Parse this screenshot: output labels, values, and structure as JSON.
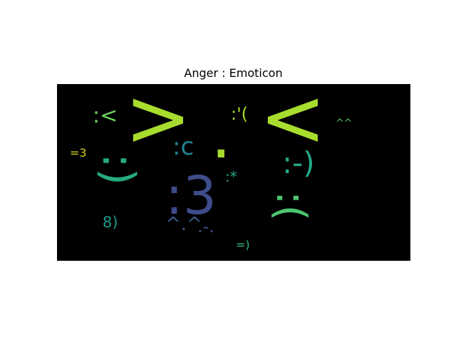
{
  "title": "Anger : Emoticon",
  "cloud_background": "#000000",
  "words": [
    {
      "id": "gt",
      "text": ">",
      "color": "#a8dc2e"
    },
    {
      "id": "lt",
      "text": "<",
      "color": "#a8dc2e"
    },
    {
      "id": "colon-lt",
      "text": ":<",
      "color": "#6bcd59"
    },
    {
      "id": "colon-apos-paren",
      "text": ":'(",
      "color": "#a8dc2e"
    },
    {
      "id": "caret-caret",
      "text": "^^",
      "color": "#4fc16a"
    },
    {
      "id": "eq-three",
      "text": "=3",
      "color": "#d2cf23"
    },
    {
      "id": "colon-c",
      "text": ":c",
      "color": "#22838e"
    },
    {
      "id": "dot",
      "text": ".",
      "color": "#a8dc2e"
    },
    {
      "id": "colon-dash-paren",
      "text": ":-)",
      "color": "#24a98a"
    },
    {
      "id": "colon-paren",
      "text": ":)",
      "color": "#26ab81"
    },
    {
      "id": "colon-three",
      "text": ":3",
      "color": "#3e4c8a"
    },
    {
      "id": "colon-star",
      "text": ":*",
      "color": "#23a98b"
    },
    {
      "id": "colon-open-paren",
      "text": ":(",
      "color": "#4bc56f"
    },
    {
      "id": "eight-paren",
      "text": "8)",
      "color": "#1f9a8a"
    },
    {
      "id": "caret-dot-caret",
      "text": "^.^",
      "color": "#3a5a8c"
    },
    {
      "id": "dot-dash-dot",
      "text": ".-.",
      "color": "#3b528b"
    },
    {
      "id": "eq-paren",
      "text": "=)",
      "color": "#2fb47c"
    }
  ]
}
